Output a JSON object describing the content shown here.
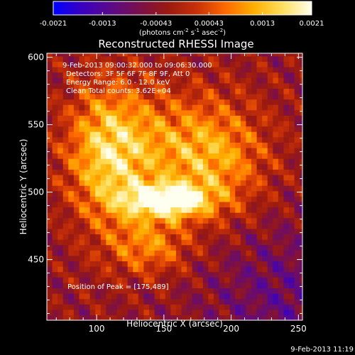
{
  "colorbar": {
    "ticks": [
      -0.0021,
      -0.0013,
      -0.00043,
      0.00043,
      0.0013,
      0.0021
    ],
    "tick_labels": [
      "-0.0021",
      "-0.0013",
      "-0.00043",
      "0.00043",
      "0.0013",
      "0.0021"
    ],
    "units_label": "(photons cm",
    "units_exp1": "-2",
    "units_mid": " s",
    "units_exp2": "-1",
    "units_mid2": " asec",
    "units_exp3": "-2",
    "units_end": ")",
    "colormap": [
      "#0000ff",
      "#3a00c0",
      "#5a0a8a",
      "#7a0f4a",
      "#9a1a10",
      "#c83008",
      "#ff6a00",
      "#ffb000",
      "#ffe060",
      "#fffff0"
    ]
  },
  "plot": {
    "title": "Reconstructed RHESSI Image",
    "info_lines": [
      "9-Feb-2013 09:00:32.000 to 09:06:30.000",
      "Detectors: 3F 5F 6F 7F 8F 9F, Att 0",
      "Energy Range: 6.0 - 12.0 keV",
      "Clean     Total counts: 3.62E+04"
    ],
    "peak_label": "Position of Peak = [175,489]"
  },
  "footer": {
    "date": "9-Feb-2013 11:19"
  },
  "chart_data": {
    "type": "heatmap",
    "title": "Reconstructed RHESSI Image",
    "xlabel": "Heliocentric X (arcsec)",
    "ylabel": "Heliocentric Y (arcsec)",
    "xlim": [
      63,
      253
    ],
    "ylim": [
      405,
      603
    ],
    "x_ticks": [
      100,
      150,
      200,
      250
    ],
    "y_ticks": [
      450,
      500,
      550,
      600
    ],
    "peak": [
      175,
      489
    ],
    "value_range": [
      -0.0021,
      0.0021
    ],
    "sources": [
      {
        "x": 152,
        "y": 494,
        "sx": 22,
        "sy": 9,
        "amp": 1.0
      },
      {
        "x": 108,
        "y": 525,
        "sx": 20,
        "sy": 40,
        "amp": 0.55
      },
      {
        "x": 150,
        "y": 535,
        "sx": 45,
        "sy": 30,
        "amp": 0.45
      },
      {
        "x": 190,
        "y": 520,
        "sx": 25,
        "sy": 30,
        "amp": 0.35
      },
      {
        "x": 140,
        "y": 460,
        "sx": 20,
        "sy": 15,
        "amp": 0.45
      }
    ]
  }
}
